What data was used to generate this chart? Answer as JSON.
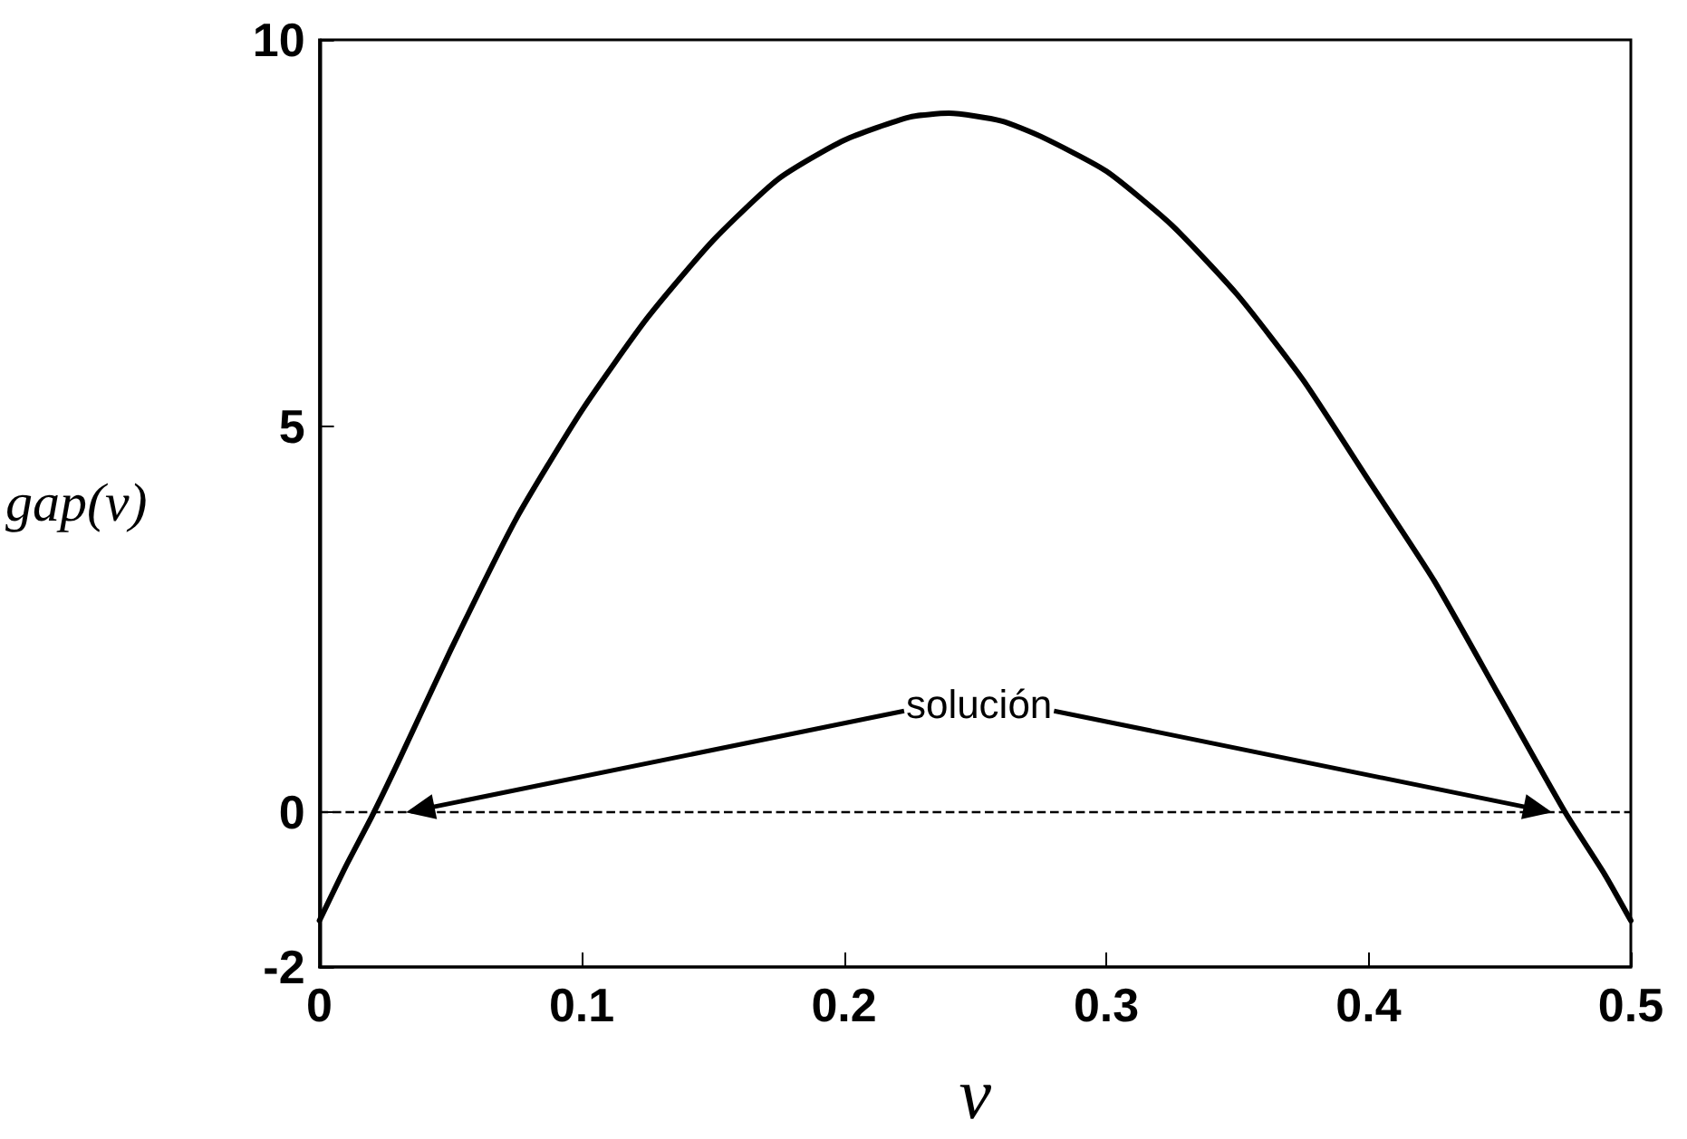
{
  "chart_data": {
    "type": "line",
    "xlabel": "v",
    "ylabel": "gap(v)",
    "x": [
      0,
      0.01,
      0.02,
      0.03,
      0.05,
      0.075,
      0.1,
      0.125,
      0.15,
      0.175,
      0.2,
      0.225,
      0.24,
      0.26,
      0.275,
      0.3,
      0.325,
      0.35,
      0.375,
      0.4,
      0.425,
      0.45,
      0.475,
      0.49,
      0.5
    ],
    "series": [
      {
        "color": "#000000",
        "values": [
          -1.4,
          -0.7,
          -0.05,
          0.65,
          2.1,
          3.8,
          5.2,
          6.4,
          7.4,
          8.2,
          8.7,
          9.0,
          9.05,
          8.95,
          8.75,
          8.3,
          7.6,
          6.7,
          5.6,
          4.3,
          3.0,
          1.5,
          0,
          -0.8,
          -1.4
        ]
      }
    ],
    "xlim": [
      0,
      0.5
    ],
    "xticks": [
      0,
      0.1,
      0.2,
      0.3,
      0.4,
      0.5
    ],
    "ylim": [
      -2,
      10
    ],
    "yticks": [
      -2,
      0,
      5,
      10
    ],
    "ref_lines": [
      {
        "axis": "y",
        "value": 0,
        "color": "#000000",
        "line_style": "dashed"
      }
    ],
    "annotations": [
      {
        "text": "solución",
        "x": 0.033,
        "y": 0
      }
    ],
    "grid": false,
    "marker": "none",
    "line_style": "solid"
  }
}
